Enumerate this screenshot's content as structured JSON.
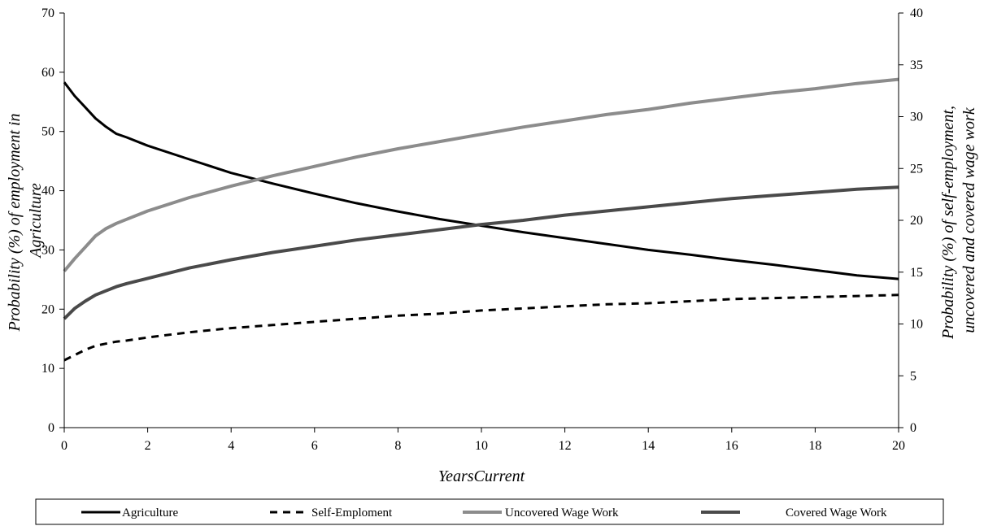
{
  "chart_data": {
    "type": "line",
    "xlabel": "YearsCurrent",
    "ylabel_left": [
      "Probability (%) of employment in",
      "Agriculture"
    ],
    "ylabel_right": [
      "Probability (%) of self-employment,",
      "uncovered and covered wage work"
    ],
    "xlim": [
      0,
      20
    ],
    "x_ticks": [
      0,
      2,
      4,
      6,
      8,
      10,
      12,
      14,
      16,
      18,
      20
    ],
    "ylim_left": [
      0,
      70
    ],
    "y_ticks_left": [
      0,
      10,
      20,
      30,
      40,
      50,
      60,
      70
    ],
    "ylim_right": [
      0,
      40
    ],
    "y_ticks_right": [
      0,
      5,
      10,
      15,
      20,
      25,
      30,
      35,
      40
    ],
    "grid": false,
    "legend_position": "bottom",
    "series": [
      {
        "name": "Agriculture",
        "axis": "left",
        "color": "#000000",
        "style": "solid",
        "x": [
          0,
          0.25,
          0.5,
          0.75,
          1,
          1.25,
          1.5,
          2,
          3,
          4,
          5,
          6,
          7,
          8,
          9,
          10,
          11,
          12,
          13,
          14,
          15,
          16,
          17,
          18,
          19,
          20
        ],
        "y": [
          58.3,
          56.0,
          54.1,
          52.2,
          50.8,
          49.6,
          49.0,
          47.6,
          45.3,
          43.0,
          41.2,
          39.5,
          37.9,
          36.5,
          35.2,
          34.1,
          33.0,
          32.0,
          31.0,
          30.0,
          29.2,
          28.3,
          27.5,
          26.6,
          25.7,
          25.1
        ]
      },
      {
        "name": "Self-Emploment",
        "axis": "right",
        "color": "#000000",
        "style": "dashed",
        "x": [
          0,
          0.25,
          0.5,
          0.75,
          1,
          1.25,
          1.5,
          2,
          3,
          4,
          5,
          6,
          7,
          8,
          9,
          10,
          11,
          12,
          13,
          14,
          15,
          16,
          17,
          18,
          19,
          20
        ],
        "y": [
          6.5,
          7.0,
          7.5,
          7.9,
          8.1,
          8.3,
          8.4,
          8.7,
          9.2,
          9.6,
          9.9,
          10.2,
          10.5,
          10.8,
          11.0,
          11.3,
          11.5,
          11.7,
          11.9,
          12.0,
          12.2,
          12.4,
          12.5,
          12.6,
          12.7,
          12.8
        ]
      },
      {
        "name": "Uncovered Wage Work",
        "axis": "right",
        "color": "#8c8c8c",
        "style": "solid",
        "x": [
          0,
          0.25,
          0.5,
          0.75,
          1,
          1.25,
          1.5,
          2,
          3,
          4,
          5,
          6,
          7,
          8,
          9,
          10,
          11,
          12,
          13,
          14,
          15,
          16,
          17,
          18,
          19,
          20
        ],
        "y": [
          15.1,
          16.3,
          17.4,
          18.5,
          19.2,
          19.7,
          20.1,
          20.9,
          22.2,
          23.3,
          24.3,
          25.2,
          26.1,
          26.9,
          27.6,
          28.3,
          29.0,
          29.6,
          30.2,
          30.7,
          31.3,
          31.8,
          32.3,
          32.7,
          33.2,
          33.6
        ]
      },
      {
        "name": "Covered Wage Work",
        "axis": "right",
        "color": "#4a4a4a",
        "style": "solid",
        "x": [
          0,
          0.25,
          0.5,
          0.75,
          1,
          1.25,
          1.5,
          2,
          3,
          4,
          5,
          6,
          7,
          8,
          9,
          10,
          11,
          12,
          13,
          14,
          15,
          16,
          17,
          18,
          19,
          20
        ],
        "y": [
          10.5,
          11.5,
          12.2,
          12.8,
          13.2,
          13.6,
          13.9,
          14.4,
          15.4,
          16.2,
          16.9,
          17.5,
          18.1,
          18.6,
          19.1,
          19.6,
          20.0,
          20.5,
          20.9,
          21.3,
          21.7,
          22.1,
          22.4,
          22.7,
          23.0,
          23.2
        ]
      }
    ]
  }
}
